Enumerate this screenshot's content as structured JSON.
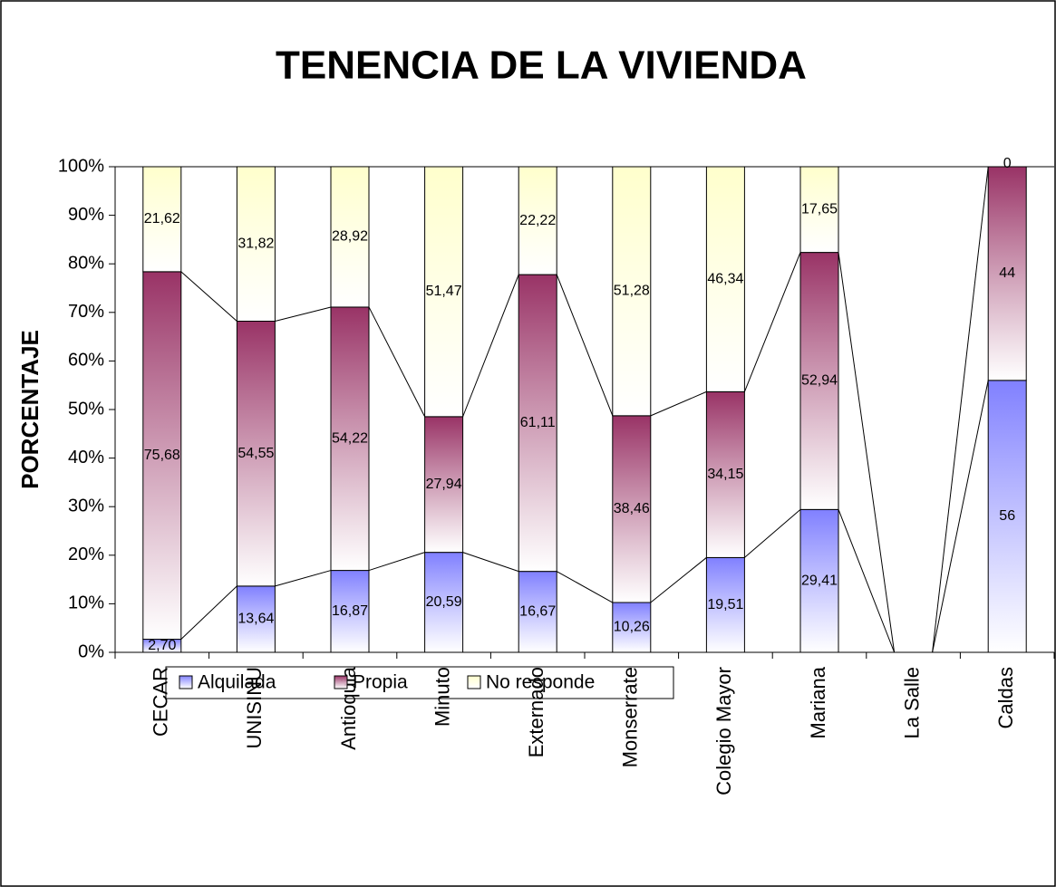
{
  "chart_data": {
    "type": "stacked_bar_100",
    "title": "TENENCIA DE LA VIVIENDA",
    "y_label": "PORCENTAJE",
    "categories": [
      "CECAR",
      "UNISINU",
      "Antioquia",
      "Minuto",
      "Externado",
      "Monserrate",
      "Colegio Mayor",
      "Mariana",
      "La Salle",
      "Caldas"
    ],
    "series": [
      {
        "name": "Alquilada",
        "color": "#8080ff",
        "values": [
          2.7,
          13.64,
          16.87,
          20.59,
          16.67,
          10.26,
          19.51,
          29.41,
          null,
          56
        ],
        "value_labels": [
          "2,70",
          "13,64",
          "16,87",
          "20,59",
          "16,67",
          "10,26",
          "19,51",
          "29,41",
          null,
          "56"
        ]
      },
      {
        "name": "Propia",
        "color": "#993366",
        "values": [
          75.68,
          54.55,
          54.22,
          27.94,
          61.11,
          38.46,
          34.15,
          52.94,
          null,
          44
        ],
        "value_labels": [
          "75,68",
          "54,55",
          "54,22",
          "27,94",
          "61,11",
          "38,46",
          "34,15",
          "52,94",
          null,
          "44"
        ]
      },
      {
        "name": "No responde",
        "color": "#ffffcc",
        "values": [
          21.62,
          31.82,
          28.92,
          51.47,
          22.22,
          51.28,
          46.34,
          17.65,
          null,
          0
        ],
        "value_labels": [
          "21,62",
          "31,82",
          "28,92",
          "51,47",
          "22,22",
          "51,28",
          "46,34",
          "17,65",
          null,
          "0"
        ]
      }
    ],
    "ylim": [
      0,
      100
    ],
    "yticks": [
      {
        "value": 0,
        "label": "0%"
      },
      {
        "value": 10,
        "label": "10%"
      },
      {
        "value": 20,
        "label": "20%"
      },
      {
        "value": 30,
        "label": "30%"
      },
      {
        "value": 40,
        "label": "40%"
      },
      {
        "value": 50,
        "label": "50%"
      },
      {
        "value": 60,
        "label": "60%"
      },
      {
        "value": 70,
        "label": "70%"
      },
      {
        "value": 80,
        "label": "80%"
      },
      {
        "value": 90,
        "label": "90%"
      },
      {
        "value": 100,
        "label": "100%"
      }
    ],
    "grid": false,
    "legend": "bottom"
  }
}
